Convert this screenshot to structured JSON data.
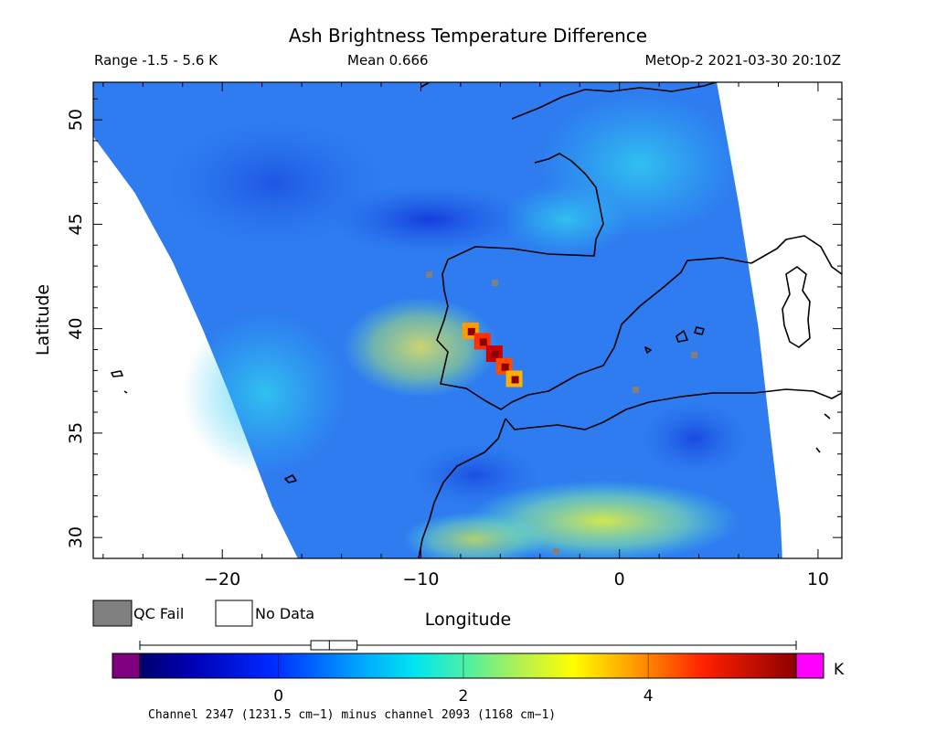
{
  "title": "Ash Brightness Temperature Difference",
  "range_label": "Range -1.5 - 5.6 K",
  "mean_label": "Mean 0.666",
  "satellite_label": "MetOp-2 2021-03-30 20:10Z",
  "map": {
    "xlabel": "Longitude",
    "ylabel": "Latitude",
    "lon_range": [
      -26.5,
      11.2
    ],
    "lat_range": [
      29.0,
      51.8
    ],
    "x_ticks": [
      {
        "value": -20,
        "label": "−20"
      },
      {
        "value": -10,
        "label": "−10"
      },
      {
        "value": 0,
        "label": "0"
      },
      {
        "value": 10,
        "label": "10"
      }
    ],
    "y_ticks": [
      {
        "value": 30,
        "label": "30"
      },
      {
        "value": 35,
        "label": "35"
      },
      {
        "value": 40,
        "label": "40"
      },
      {
        "value": 45,
        "label": "45"
      },
      {
        "value": 50,
        "label": "50"
      }
    ],
    "swath_left_edge_lonlat": [
      [
        -26.5,
        49.2
      ],
      [
        -24.4,
        46.5
      ],
      [
        -22.5,
        43.2
      ],
      [
        -21.0,
        40.0
      ],
      [
        -19.7,
        37.0
      ],
      [
        -18.5,
        34.0
      ],
      [
        -17.5,
        31.5
      ],
      [
        -16.2,
        29.0
      ]
    ],
    "swath_right_edge_lonlat": [
      [
        4.9,
        51.8
      ],
      [
        6.0,
        46.0
      ],
      [
        7.0,
        40.0
      ],
      [
        7.6,
        35.0
      ],
      [
        8.1,
        31.0
      ],
      [
        8.2,
        29.0
      ]
    ],
    "ash_plume_lonlat": [
      [
        -7.5,
        39.9
      ],
      [
        -6.9,
        39.4
      ],
      [
        -6.3,
        38.8
      ],
      [
        -5.8,
        38.2
      ],
      [
        -5.3,
        37.6
      ]
    ],
    "legend_items": [
      {
        "label": "QC Fail",
        "color": "#808080"
      },
      {
        "label": "No Data",
        "color": "#ffffff"
      }
    ]
  },
  "colorbar": {
    "unit": "K",
    "vmin": -1.5,
    "vmax": 5.6,
    "ticks": [
      {
        "value": 0,
        "label": "0"
      },
      {
        "value": 2,
        "label": "2"
      },
      {
        "value": 4,
        "label": "4"
      }
    ],
    "box_q1": 0.35,
    "box_median": 0.55,
    "box_q3": 0.85,
    "underflow_color": "#7f007f",
    "overflow_color": "#ff00ff",
    "caption": "Channel 2347 (1231.5 cm−1) minus channel 2093 (1168 cm−1)"
  }
}
